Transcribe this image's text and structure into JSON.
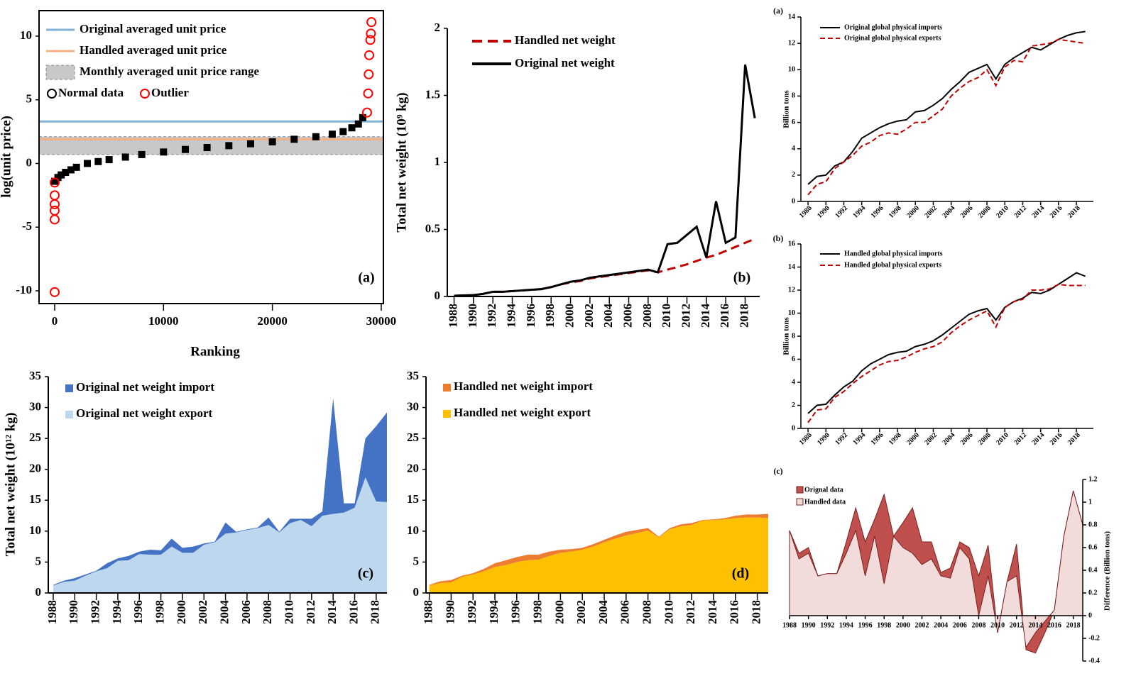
{
  "chart_data": [
    {
      "type": "scatter",
      "panel_label": "(a)",
      "x_label": "Ranking",
      "y_label": "log(unit price)",
      "xlim": [
        -1435,
        30200
      ],
      "ylim": [
        -11,
        12
      ],
      "xticks": [
        0,
        10000,
        20000,
        30000
      ],
      "yticks": [
        -10,
        -5,
        0,
        5,
        10
      ],
      "reference_lines": [
        {
          "name": "Original averaged unit price",
          "color": "#7fb2d6",
          "value": 3.3
        },
        {
          "name": "Handled averaged unit price",
          "color": "#f4b183",
          "value": 1.9
        }
      ],
      "bands": [
        {
          "name": "Monthly averaged unit price range",
          "color": "#c8c8c8",
          "low": 0.7,
          "high": 2.1
        }
      ],
      "series": [
        {
          "name": "Normal data",
          "color": "#000000",
          "x": [
            0,
            300,
            600,
            1000,
            1500,
            2000,
            3000,
            4000,
            5000,
            6500,
            8000,
            10000,
            12000,
            14000,
            16000,
            18000,
            20000,
            22000,
            24000,
            25500,
            26500,
            27300,
            27900,
            28300
          ],
          "values": [
            -1.4,
            -1.1,
            -0.9,
            -0.7,
            -0.5,
            -0.3,
            0.0,
            0.15,
            0.3,
            0.5,
            0.7,
            0.9,
            1.1,
            1.25,
            1.4,
            1.55,
            1.7,
            1.9,
            2.1,
            2.3,
            2.5,
            2.8,
            3.1,
            3.6
          ]
        },
        {
          "name": "Outlier",
          "color": "#ff0000",
          "x": [
            0,
            0,
            0,
            0,
            0,
            0,
            28700,
            28800,
            28850,
            28900,
            29000,
            29050,
            29100
          ],
          "values": [
            -1.5,
            -2.5,
            -3.2,
            -3.7,
            -4.4,
            -10.1,
            4.0,
            5.5,
            7.0,
            8.5,
            9.7,
            10.2,
            11.1
          ]
        }
      ]
    },
    {
      "type": "line",
      "panel_label": "(b)",
      "y_label": "Total net weight (10⁹ kg)",
      "xlim": [
        1987.3,
        2019.5
      ],
      "ylim": [
        0,
        2
      ],
      "xticks": [
        1988,
        1990,
        1992,
        1994,
        1996,
        1998,
        2000,
        2002,
        2004,
        2006,
        2008,
        2010,
        2012,
        2014,
        2016,
        2018
      ],
      "yticks": [
        0,
        0.5,
        1,
        1.5,
        2
      ],
      "x": [
        1988,
        1989,
        1990,
        1991,
        1992,
        1993,
        1994,
        1995,
        1996,
        1997,
        1998,
        1999,
        2000,
        2001,
        2002,
        2003,
        2004,
        2005,
        2006,
        2007,
        2008,
        2009,
        2010,
        2011,
        2012,
        2013,
        2014,
        2015,
        2016,
        2017,
        2018,
        2019
      ],
      "series": [
        {
          "name": "Handled net weight",
          "color": "#c00000",
          "style": "dashed",
          "values": [
            0.005,
            0.008,
            0.01,
            0.02,
            0.035,
            0.035,
            0.04,
            0.045,
            0.05,
            0.055,
            0.07,
            0.09,
            0.105,
            0.115,
            0.135,
            0.145,
            0.155,
            0.165,
            0.175,
            0.185,
            0.195,
            0.18,
            0.2,
            0.22,
            0.24,
            0.265,
            0.29,
            0.31,
            0.34,
            0.37,
            0.4,
            0.43
          ]
        },
        {
          "name": "Original net weight",
          "color": "#000000",
          "style": "solid",
          "values": [
            0.005,
            0.008,
            0.01,
            0.02,
            0.035,
            0.035,
            0.04,
            0.045,
            0.05,
            0.055,
            0.07,
            0.09,
            0.11,
            0.12,
            0.14,
            0.15,
            0.16,
            0.17,
            0.18,
            0.19,
            0.2,
            0.18,
            0.39,
            0.4,
            0.46,
            0.52,
            0.29,
            0.71,
            0.4,
            0.44,
            1.73,
            1.33
          ]
        }
      ]
    },
    {
      "type": "line",
      "panel_label": "(a)",
      "y_label": "Billion tons",
      "xlim": [
        1987.2,
        2019.9
      ],
      "ylim": [
        0,
        14
      ],
      "xticks": [
        1988,
        1990,
        1992,
        1994,
        1996,
        1998,
        2000,
        2002,
        2004,
        2006,
        2008,
        2010,
        2012,
        2014,
        2016,
        2018
      ],
      "yticks": [
        0,
        2,
        4,
        6,
        8,
        10,
        12,
        14
      ],
      "x": [
        1988,
        1989,
        1990,
        1991,
        1992,
        1993,
        1994,
        1995,
        1996,
        1997,
        1998,
        1999,
        2000,
        2001,
        2002,
        2003,
        2004,
        2005,
        2006,
        2007,
        2008,
        2009,
        2010,
        2011,
        2012,
        2013,
        2014,
        2015,
        2016,
        2017,
        2018,
        2019
      ],
      "series": [
        {
          "name": "Original global physical imports",
          "color": "#000000",
          "style": "solid",
          "values": [
            1.3,
            1.9,
            2.0,
            2.7,
            3.0,
            3.8,
            4.8,
            5.2,
            5.6,
            5.9,
            6.1,
            6.2,
            6.8,
            6.9,
            7.3,
            7.8,
            8.5,
            9.1,
            9.8,
            10.1,
            10.4,
            9.3,
            10.4,
            10.9,
            11.3,
            11.7,
            11.5,
            11.9,
            12.3,
            12.6,
            12.8,
            12.9
          ]
        },
        {
          "name": "Original global physical exports",
          "color": "#c00000",
          "style": "dashed",
          "values": [
            0.5,
            1.3,
            1.5,
            2.5,
            3.0,
            3.5,
            4.2,
            4.5,
            5.0,
            5.2,
            5.1,
            5.5,
            6.0,
            6.0,
            6.5,
            7.0,
            8.0,
            8.6,
            9.1,
            9.4,
            10.0,
            8.8,
            10.2,
            10.7,
            10.6,
            11.8,
            11.9,
            12.0,
            12.3,
            12.2,
            12.1,
            12.0
          ]
        }
      ]
    },
    {
      "type": "line",
      "panel_label": "(b)",
      "y_label": "Billion tons",
      "xlim": [
        1987.2,
        2019.9
      ],
      "ylim": [
        0,
        16
      ],
      "xticks": [
        1988,
        1990,
        1992,
        1994,
        1996,
        1998,
        2000,
        2002,
        2004,
        2006,
        2008,
        2010,
        2012,
        2014,
        2016,
        2018
      ],
      "yticks": [
        0,
        2,
        4,
        6,
        8,
        10,
        12,
        14,
        16
      ],
      "x": [
        1988,
        1989,
        1990,
        1991,
        1992,
        1993,
        1994,
        1995,
        1996,
        1997,
        1998,
        1999,
        2000,
        2001,
        2002,
        2003,
        2004,
        2005,
        2006,
        2007,
        2008,
        2009,
        2010,
        2011,
        2012,
        2013,
        2014,
        2015,
        2016,
        2017,
        2018,
        2019
      ],
      "series": [
        {
          "name": "Handled global physical imports",
          "color": "#000000",
          "style": "solid",
          "values": [
            1.3,
            2.0,
            2.1,
            2.9,
            3.6,
            4.1,
            5.0,
            5.6,
            6.0,
            6.4,
            6.6,
            6.7,
            7.1,
            7.3,
            7.6,
            8.1,
            8.7,
            9.3,
            9.9,
            10.2,
            10.4,
            9.4,
            10.5,
            11.0,
            11.3,
            11.8,
            11.7,
            12.0,
            12.5,
            13.0,
            13.5,
            13.2
          ]
        },
        {
          "name": "Handled global physical exports",
          "color": "#c00000",
          "style": "dashed",
          "values": [
            0.5,
            1.6,
            1.7,
            2.7,
            3.2,
            3.9,
            4.5,
            5.0,
            5.5,
            5.8,
            5.9,
            6.2,
            6.6,
            6.9,
            7.1,
            7.5,
            8.3,
            8.9,
            9.4,
            9.8,
            10.2,
            8.8,
            10.5,
            11.0,
            11.2,
            12.0,
            12.0,
            12.1,
            12.5,
            12.4,
            12.4,
            12.4
          ]
        }
      ]
    },
    {
      "type": "area",
      "stacked": true,
      "panel_label": "(c)",
      "y_label": "Total net weight (10¹² kg)",
      "xlim": [
        1987.54,
        2019
      ],
      "ylim": [
        0,
        35
      ],
      "xticks": [
        1988,
        1990,
        1992,
        1994,
        1996,
        1998,
        2000,
        2002,
        2004,
        2006,
        2008,
        2010,
        2012,
        2014,
        2016,
        2018
      ],
      "yticks": [
        0,
        5,
        10,
        15,
        20,
        25,
        30,
        35
      ],
      "x": [
        1988,
        1989,
        1990,
        1991,
        1992,
        1993,
        1994,
        1995,
        1996,
        1997,
        1998,
        1999,
        2000,
        2001,
        2002,
        2003,
        2004,
        2005,
        2006,
        2007,
        2008,
        2009,
        2010,
        2011,
        2012,
        2013,
        2014,
        2015,
        2016,
        2017,
        2018,
        2019
      ],
      "series": [
        {
          "name": "Original net weight import",
          "color": "#4472c4",
          "values": [
            0.1,
            0.2,
            0.4,
            0.2,
            0.1,
            0.8,
            0.4,
            0.7,
            0.4,
            0.8,
            0.7,
            1.3,
            0.8,
            1.0,
            0.2,
            0.1,
            1.8,
            0.1,
            0.1,
            0.1,
            1.2,
            0.1,
            0.7,
            0.2,
            1.2,
            0.7,
            18.7,
            1.5,
            0.7,
            6.3,
            12.2,
            14.5
          ]
        },
        {
          "name": "Original net weight export",
          "color": "#bdd7ee",
          "values": [
            1.2,
            1.8,
            2.0,
            2.8,
            3.5,
            4.0,
            5.2,
            5.3,
            6.3,
            6.2,
            6.2,
            7.5,
            6.5,
            6.5,
            7.8,
            8.2,
            9.6,
            9.8,
            10.2,
            10.5,
            11.0,
            9.8,
            11.3,
            11.8,
            10.8,
            12.5,
            12.8,
            13.0,
            13.8,
            18.7,
            14.8,
            14.7
          ]
        }
      ]
    },
    {
      "type": "area",
      "stacked": true,
      "panel_label": "(d)",
      "xlim": [
        1987.7,
        2019
      ],
      "ylim": [
        0,
        35
      ],
      "xticks": [
        1988,
        1990,
        1992,
        1994,
        1996,
        1998,
        2000,
        2002,
        2004,
        2006,
        2008,
        2010,
        2012,
        2014,
        2016,
        2018
      ],
      "yticks": [
        0,
        5,
        10,
        15,
        20,
        25,
        30,
        35
      ],
      "x": [
        1988,
        1989,
        1990,
        1991,
        1992,
        1993,
        1994,
        1995,
        1996,
        1997,
        1998,
        1999,
        2000,
        2001,
        2002,
        2003,
        2004,
        2005,
        2006,
        2007,
        2008,
        2009,
        2010,
        2011,
        2012,
        2013,
        2014,
        2015,
        2016,
        2017,
        2018,
        2019
      ],
      "series": [
        {
          "name": "Handled net weight import",
          "color": "#ed7d31",
          "values": [
            0.1,
            0.3,
            0.4,
            0.2,
            0.2,
            0.4,
            0.6,
            0.8,
            0.8,
            0.9,
            0.8,
            0.7,
            0.5,
            0.4,
            0.3,
            0.4,
            0.4,
            0.5,
            0.6,
            0.5,
            0.4,
            0.1,
            0.2,
            0.3,
            0.3,
            0.1,
            0.1,
            0.2,
            0.4,
            0.5,
            0.5,
            0.7
          ]
        },
        {
          "name": "Handled net weight export",
          "color": "#ffc000",
          "values": [
            1.2,
            1.6,
            1.7,
            2.6,
            3.0,
            3.5,
            4.2,
            4.5,
            5.0,
            5.3,
            5.4,
            6.0,
            6.5,
            6.7,
            7.0,
            7.5,
            8.2,
            8.8,
            9.3,
            9.7,
            10.1,
            9.0,
            10.3,
            10.8,
            11.0,
            11.7,
            11.8,
            11.9,
            12.1,
            12.2,
            12.2,
            12.1
          ]
        }
      ]
    },
    {
      "type": "area",
      "stacked": false,
      "panel_label": "(c)",
      "y_label": "Difference (Billion tons)",
      "y_axis_side": "right",
      "xlim": [
        1988,
        2019
      ],
      "ylim": [
        -0.4,
        1.2
      ],
      "xticks": [
        1988,
        1990,
        1992,
        1994,
        1996,
        1998,
        2000,
        2002,
        2004,
        2006,
        2008,
        2010,
        2012,
        2014,
        2016,
        2018
      ],
      "yticks": [
        -0.4,
        -0.2,
        0,
        0.2,
        0.4,
        0.6,
        0.8,
        1,
        1.2
      ],
      "x": [
        1988,
        1989,
        1990,
        1991,
        1992,
        1993,
        1994,
        1995,
        1996,
        1997,
        1998,
        1999,
        2000,
        2001,
        2002,
        2003,
        2004,
        2005,
        2006,
        2007,
        2008,
        2009,
        2010,
        2011,
        2012,
        2013,
        2014,
        2015,
        2016,
        2017,
        2018,
        2019
      ],
      "series": [
        {
          "name": "Orignal data",
          "color": "#c0504d",
          "values": [
            0.75,
            0.55,
            0.6,
            0.35,
            0.37,
            0.37,
            0.65,
            0.95,
            0.65,
            0.85,
            1.07,
            0.7,
            0.82,
            0.95,
            0.65,
            0.65,
            0.38,
            0.42,
            0.65,
            0.6,
            0.35,
            0.62,
            -0.15,
            0.3,
            0.63,
            -0.3,
            -0.33,
            -0.15,
            0.05,
            0.7,
            1.1,
            0.8
          ]
        },
        {
          "name": "Handled data",
          "color": "#f2dcdb",
          "values": [
            0.75,
            0.5,
            0.55,
            0.35,
            0.37,
            0.37,
            0.55,
            0.75,
            0.35,
            0.7,
            0.28,
            0.7,
            0.6,
            0.55,
            0.45,
            0.5,
            0.35,
            0.33,
            0.6,
            0.5,
            0.0,
            0.35,
            -0.15,
            0.3,
            0.35,
            -0.28,
            -0.15,
            -0.05,
            0.05,
            0.7,
            1.1,
            0.8
          ]
        }
      ]
    }
  ]
}
